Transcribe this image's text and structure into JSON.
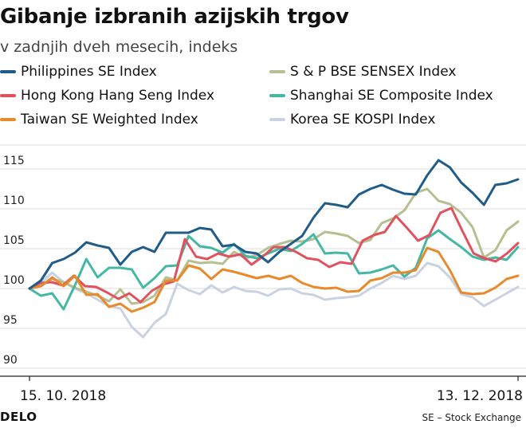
{
  "title": "Gibanje izbranih azijskih trgov",
  "subtitle": "v zadnjih dveh mesecih, indeks",
  "footer": {
    "brand": "DELO",
    "source": "SE – Stock Exchange"
  },
  "chart_data": {
    "type": "line",
    "title": "Gibanje izbranih azijskih trgov",
    "subtitle": "v zadnjih dveh mesecih, indeks",
    "x_start_label": "15. 10. 2018",
    "x_end_label": "13. 12. 2018",
    "y_ticks": [
      90,
      95,
      100,
      105,
      110,
      115
    ],
    "ylim": [
      89,
      118
    ],
    "grid": true,
    "legend_position": "top",
    "series": [
      {
        "name": "Philippines SE Index",
        "color": "#1f5c8a",
        "values": [
          100,
          101,
          103.2,
          103.7,
          104.5,
          105.8,
          105.4,
          105.1,
          103,
          104.6,
          105.2,
          104.6,
          107,
          107,
          107,
          107.6,
          107.4,
          105.3,
          105.5,
          104.6,
          104.4,
          103.3,
          104.6,
          105.6,
          106.6,
          108.9,
          110.7,
          110.5,
          110.2,
          111.8,
          112.5,
          113,
          112.4,
          111.9,
          111.8,
          114.2,
          116.1,
          115.2,
          113.3,
          112,
          110.5,
          113,
          113.2,
          113.7
        ]
      },
      {
        "name": "S & P BSE SENSEX Index",
        "color": "#b5bf8f",
        "values": [
          100,
          100.3,
          101.2,
          100.8,
          100.1,
          99.6,
          99.1,
          98.4,
          99.9,
          98.1,
          98.3,
          99.1,
          101.4,
          101,
          103.5,
          103.2,
          103.3,
          103.1,
          104.6,
          103.8,
          104.2,
          105.1,
          105.6,
          106,
          105.9,
          106.2,
          107.1,
          106.9,
          106.6,
          105.7,
          106.1,
          108.2,
          108.8,
          109.8,
          112,
          112.5,
          111,
          110.6,
          109.5,
          107.7,
          103.9,
          104.8,
          107.3,
          108.4
        ]
      },
      {
        "name": "Hong Kong Hang Seng Index",
        "color": "#e0525e",
        "values": [
          100,
          100.7,
          100.8,
          100.4,
          101.6,
          100.3,
          100.2,
          99.5,
          98.7,
          99.4,
          98.3,
          99.7,
          100.5,
          100.9,
          106.2,
          104,
          103.7,
          104.4,
          104,
          104.3,
          103,
          104,
          105.2,
          105.2,
          104.6,
          103.8,
          103.6,
          102.7,
          103.3,
          103.1,
          106,
          106.7,
          107.1,
          109.1,
          107.6,
          106,
          106.7,
          109.5,
          110.1,
          107.2,
          104.4,
          103.8,
          103.4,
          104.4,
          105.7
        ]
      },
      {
        "name": "Shanghai SE Composite Index",
        "color": "#45b8a5",
        "values": [
          100,
          99.1,
          99.4,
          97.4,
          100.4,
          103.7,
          101.4,
          102.6,
          102.6,
          102.4,
          100.1,
          101.3,
          102.8,
          102.9,
          106.6,
          105.3,
          105.1,
          104.5,
          105.6,
          104.1,
          103.8,
          104.4,
          105,
          104.7,
          105.6,
          106.8,
          104.4,
          104.5,
          104.4,
          101.9,
          102,
          102.4,
          102.9,
          101.5,
          102.6,
          106.3,
          107.3,
          106.2,
          105.2,
          104,
          103.6,
          103.9,
          103.6,
          105.2
        ]
      },
      {
        "name": "Taiwan SE Weighted Index",
        "color": "#e8892b",
        "values": [
          100,
          100.3,
          101.4,
          100.3,
          101.6,
          99.2,
          99.3,
          97.7,
          98.1,
          97.1,
          97.6,
          98.3,
          101,
          101,
          102.9,
          102.5,
          101.2,
          102.4,
          102.1,
          101.7,
          101.3,
          101.6,
          101.2,
          101.6,
          100.7,
          100.2,
          100,
          100.1,
          99.6,
          99.7,
          101,
          101.3,
          102,
          102,
          102.3,
          105.1,
          104.6,
          102.3,
          99.5,
          99.3,
          99.4,
          100.1,
          101.2,
          101.6
        ]
      },
      {
        "name": "Korea SE KOSPI Index",
        "color": "#c9d2e3",
        "values": [
          100,
          100.7,
          102,
          100.8,
          100,
          99.4,
          98.6,
          97.8,
          97.5,
          95.2,
          93.9,
          95.7,
          96.8,
          100.6,
          99.8,
          99.3,
          100.4,
          99.5,
          100.2,
          99.7,
          99.6,
          99.1,
          99.9,
          100,
          99.4,
          99.2,
          98.6,
          98.8,
          98.9,
          99.1,
          100,
          100.7,
          101.6,
          101.2,
          101.6,
          103.2,
          102.8,
          101.4,
          99.3,
          98.9,
          97.8,
          98.6,
          99.4,
          100.2
        ]
      }
    ]
  }
}
